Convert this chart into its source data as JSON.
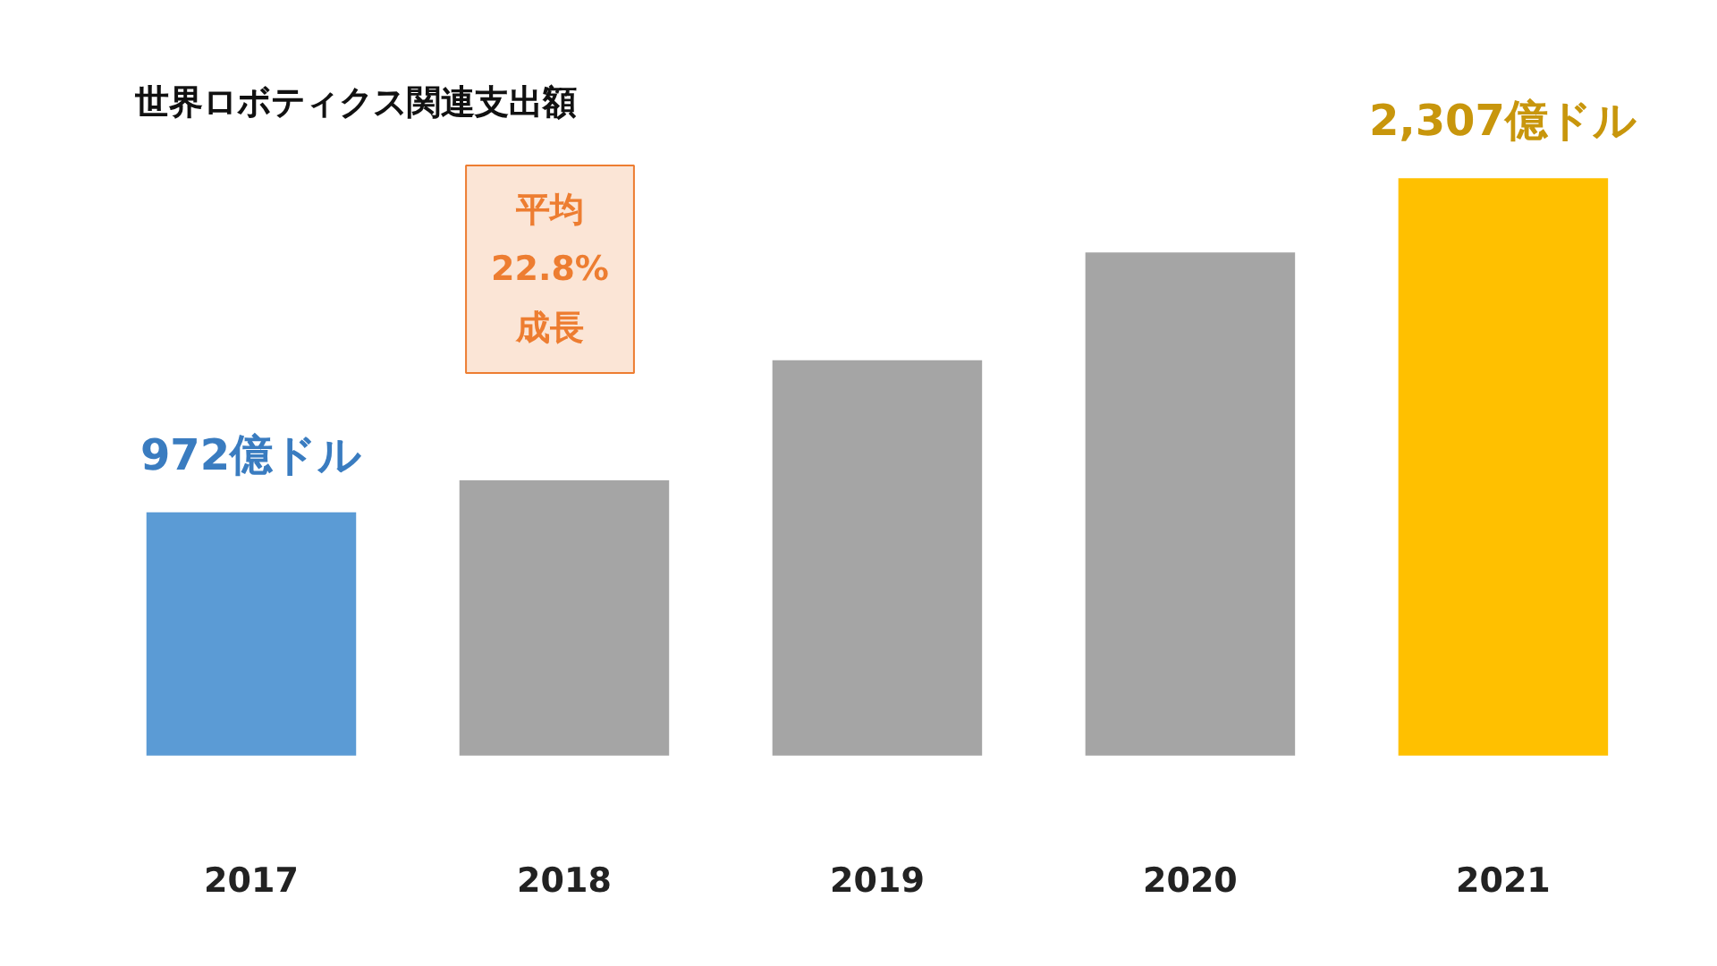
{
  "chart_data": {
    "type": "bar",
    "title": "世界ロボティクス関連支出額",
    "categories": [
      "2017",
      "2018",
      "2019",
      "2020",
      "2021"
    ],
    "values": [
      972,
      1100,
      1580,
      2010,
      2307
    ],
    "colors": [
      "#5b9bd5",
      "#a5a5a5",
      "#a5a5a5",
      "#a5a5a5",
      "#ffc000"
    ],
    "value_labels": [
      "972億ドル",
      null,
      null,
      null,
      "2,307億ドル"
    ],
    "annotations": [
      "平均\n22.8%\n成長"
    ]
  }
}
